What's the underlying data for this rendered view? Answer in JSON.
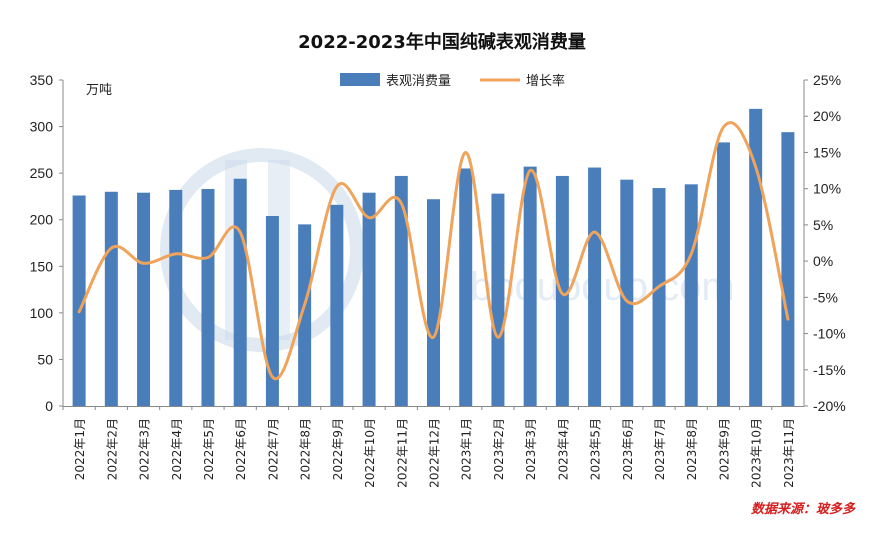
{
  "chart_data": {
    "type": "bar",
    "title": "2022-2023年中国纯碱表观消费量",
    "unit_label": "万吨",
    "categories": [
      "2022年1月",
      "2022年2月",
      "2022年3月",
      "2022年4月",
      "2022年5月",
      "2022年6月",
      "2022年7月",
      "2022年8月",
      "2022年9月",
      "2022年10月",
      "2022年11月",
      "2022年12月",
      "2023年1月",
      "2023年2月",
      "2023年3月",
      "2023年4月",
      "2023年5月",
      "2023年6月",
      "2023年7月",
      "2023年8月",
      "2023年9月",
      "2023年10月",
      "2023年11月"
    ],
    "series": [
      {
        "name": "表观消费量",
        "type": "bar",
        "axis": "left",
        "color": "#4a7ebb",
        "values": [
          226,
          230,
          229,
          232,
          233,
          244,
          204,
          195,
          216,
          229,
          247,
          222,
          255,
          228,
          257,
          247,
          256,
          243,
          234,
          238,
          283,
          319,
          294
        ]
      },
      {
        "name": "增长率",
        "type": "line",
        "axis": "right",
        "color": "#f0a35a",
        "smooth": true,
        "values": [
          -7,
          1.8,
          -0.3,
          1,
          0.5,
          4,
          -16,
          -6,
          10.3,
          6,
          8,
          -10.5,
          15,
          -10.5,
          12.5,
          -4.5,
          4,
          -5.5,
          -3.5,
          1,
          18.5,
          13,
          -8
        ]
      }
    ],
    "y_left": {
      "min": 0,
      "max": 350,
      "ticks": [
        "0",
        "50",
        "100",
        "150",
        "200",
        "250",
        "300",
        "350"
      ]
    },
    "y_right": {
      "min": -20,
      "max": 25,
      "ticks": [
        "-20%",
        "-15%",
        "-10%",
        "-5%",
        "0%",
        "5%",
        "10%",
        "15%",
        "20%",
        "25%"
      ]
    },
    "legend": {
      "position": "top-center",
      "items": [
        "表观消费量",
        "增长率"
      ]
    },
    "source": "数据来源：玻多多",
    "watermark": "boduoduo.com"
  }
}
